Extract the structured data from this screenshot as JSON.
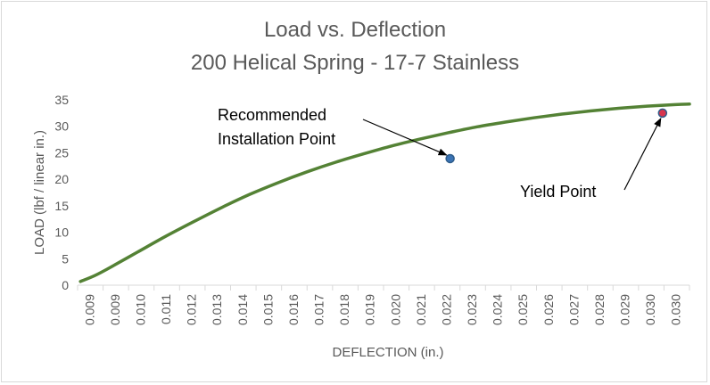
{
  "chart_data": {
    "type": "line",
    "title": "Load vs. Deflection",
    "subtitle": "200 Helical Spring - 17-7 Stainless",
    "xlabel": "DEFLECTION (in.)",
    "ylabel": "LOAD (lbf / linear in.)",
    "ylim": [
      0,
      35
    ],
    "yticks": [
      "0",
      "5",
      "10",
      "15",
      "20",
      "25",
      "30",
      "35"
    ],
    "xlim": [
      0.0089,
      0.0305
    ],
    "xtick_labels": [
      "0.009",
      "0.009",
      "0.010",
      "0.011",
      "0.012",
      "0.013",
      "0.014",
      "0.015",
      "0.016",
      "0.017",
      "0.018",
      "0.019",
      "0.020",
      "0.021",
      "0.022",
      "0.023",
      "0.024",
      "0.025",
      "0.026",
      "0.027",
      "0.028",
      "0.029",
      "0.030",
      "0.030"
    ],
    "grid": "vertical",
    "series": [
      {
        "color": "#548235",
        "x": [
          0.009,
          0.0095,
          0.01,
          0.011,
          0.012,
          0.013,
          0.014,
          0.015,
          0.016,
          0.017,
          0.018,
          0.019,
          0.02,
          0.021,
          0.022,
          0.023,
          0.024,
          0.025,
          0.026,
          0.027,
          0.028,
          0.029,
          0.03,
          0.0305
        ],
        "values": [
          0.7,
          1.8,
          3.2,
          6.2,
          9.2,
          12.0,
          14.7,
          17.2,
          19.4,
          21.4,
          23.2,
          24.8,
          26.3,
          27.6,
          28.8,
          29.9,
          30.8,
          31.6,
          32.3,
          32.9,
          33.4,
          33.8,
          34.1,
          34.2
        ]
      }
    ],
    "points": [
      {
        "x": 0.02205,
        "y": 23.9,
        "fill": "#3a73b4",
        "stroke": "#2e5c8a"
      },
      {
        "x": 0.02955,
        "y": 32.5,
        "fill": "#d8344d",
        "stroke": "#2e5c8a"
      }
    ],
    "annotations": [
      {
        "lines": [
          "Recommended",
          "Installation Point"
        ],
        "target": "point-0"
      },
      {
        "lines": [
          "Yield Point"
        ],
        "target": "point-1"
      }
    ]
  },
  "colors": {
    "axis_text": "#595959",
    "grid": "#d9d9d9",
    "line": "#548235"
  }
}
